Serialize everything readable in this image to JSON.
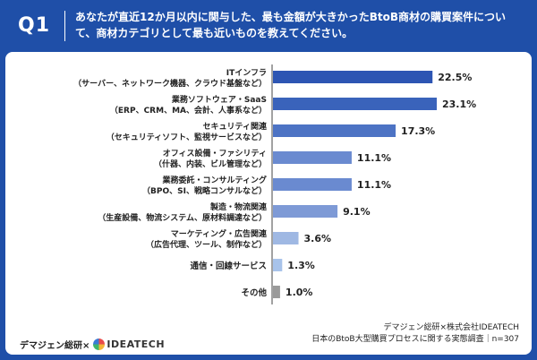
{
  "header": {
    "question_number": "Q1",
    "question_text": "あなたが直近12か月以内に関与した、最も金額が大きかったBtoB商材の購買案件について、商材カテゴリとして最も近いものを教えてください。"
  },
  "footer": {
    "brand_left": "デマジェン総研×",
    "partner_logo_text": "IDEATECH",
    "credit_line": "デマジェン総研×株式会社IDEATECH",
    "survey_line": "日本のBtoB大型購買プロセスに関する実態調査｜n=307"
  },
  "chart_data": {
    "type": "bar",
    "orientation": "horizontal",
    "categories": [
      [
        "ITインフラ",
        "（サーバー、ネットワーク機器、クラウド基盤など）"
      ],
      [
        "業務ソフトウェア・SaaS",
        "（ERP、CRM、MA、会計、人事系など）"
      ],
      [
        "セキュリティ関連",
        "（セキュリティソフト、監視サービスなど）"
      ],
      [
        "オフィス設備・ファシリティ",
        "（什器、内装、ビル管理など）"
      ],
      [
        "業務委託・コンサルティング",
        "（BPO、SI、戦略コンサルなど）"
      ],
      [
        "製造・物流関連",
        "（生産設備、物流システム、原材料調達など）"
      ],
      [
        "マーケティング・広告関連",
        "（広告代理、ツール、制作など）"
      ],
      [
        "通信・回線サービス"
      ],
      [
        "その他"
      ]
    ],
    "values": [
      22.5,
      23.1,
      17.3,
      11.1,
      11.1,
      9.1,
      3.6,
      1.3,
      1.0
    ],
    "value_labels": [
      "22.5%",
      "23.1%",
      "17.3%",
      "11.1%",
      "11.1%",
      "9.1%",
      "3.6%",
      "1.3%",
      "1.0%"
    ],
    "bar_colors": [
      "#2d55b3",
      "#3a63bb",
      "#4d73c4",
      "#6a8ad0",
      "#6a8ad0",
      "#7e9ad6",
      "#9fb8e3",
      "#a8c3ea",
      "#9a9a9a"
    ],
    "xlim": [
      0,
      23.1
    ],
    "grid": false,
    "legend": "none"
  }
}
